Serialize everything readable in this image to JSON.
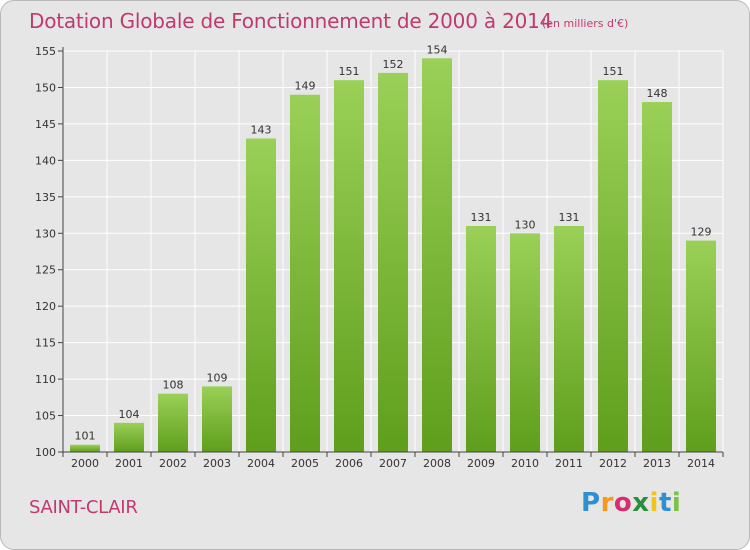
{
  "header": {
    "title": "Dotation Globale de Fonctionnement de 2000 à 2014",
    "subtitle": "(en milliers d'€)"
  },
  "footer": {
    "commune": "SAINT-CLAIR",
    "logo_text": "Proxiti",
    "logo_colors": [
      "#2e8fd1",
      "#f39a1e",
      "#d62e6e",
      "#2a8f3c",
      "#f0c419",
      "#2e8fd1",
      "#7cc242"
    ]
  },
  "chart_data": {
    "type": "bar",
    "title": "Dotation Globale de Fonctionnement de 2000 à 2014",
    "subtitle": "(en milliers d'€)",
    "categories": [
      "2000",
      "2001",
      "2002",
      "2003",
      "2004",
      "2005",
      "2006",
      "2007",
      "2008",
      "2009",
      "2010",
      "2011",
      "2012",
      "2013",
      "2014"
    ],
    "values": [
      101,
      104,
      108,
      109,
      143,
      149,
      151,
      152,
      154,
      131,
      130,
      131,
      151,
      148,
      129
    ],
    "ylim": [
      100,
      155
    ],
    "yticks": [
      100,
      105,
      110,
      115,
      120,
      125,
      130,
      135,
      140,
      145,
      150,
      155
    ],
    "grid": true,
    "bar_color_light": "#9ad057",
    "bar_color_dark": "#5f9e1c",
    "grid_color": "#ffffff",
    "axis_color": "#444444"
  }
}
